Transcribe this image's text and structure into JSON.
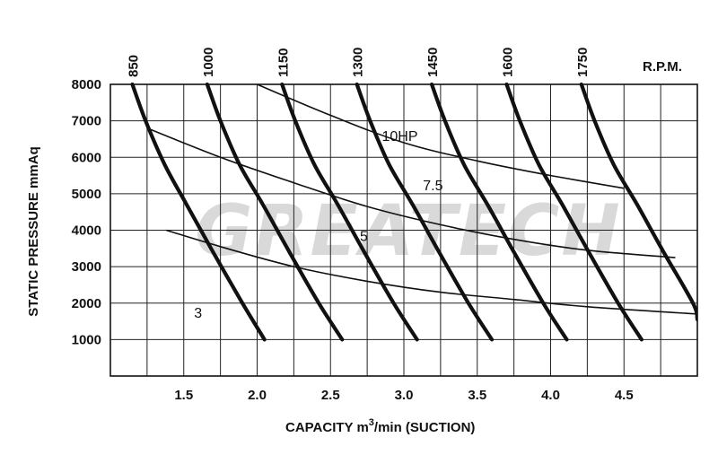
{
  "watermark": "GREATECH",
  "chart_data": {
    "type": "line",
    "title": "",
    "xlabel": "CAPACITY m3/min (SUCTION)",
    "xlabel_parts": {
      "prefix": "CAPACITY m",
      "superscript": "3",
      "suffix": "/min (SUCTION)"
    },
    "ylabel": "STATIC PRESSURE mmAq",
    "rpm_label": "R.P.M.",
    "xlim": [
      1.0,
      5.0
    ],
    "ylim": [
      0,
      8000
    ],
    "grid": true,
    "x_ticks": [
      1.5,
      2.0,
      2.5,
      3.0,
      3.5,
      4.0,
      4.5
    ],
    "x_tick_labels": [
      "1.5",
      "2.0",
      "2.5",
      "3.0",
      "3.5",
      "4.0",
      "4.5"
    ],
    "y_ticks": [
      1000,
      2000,
      3000,
      4000,
      5000,
      6000,
      7000,
      8000
    ],
    "y_tick_labels": [
      "1000",
      "2000",
      "3000",
      "4000",
      "5000",
      "6000",
      "7000",
      "8000"
    ],
    "rpm_series": [
      {
        "name": "850",
        "label": "850",
        "x": [
          1.15,
          1.24,
          1.37,
          1.52,
          1.7,
          1.9,
          2.05
        ],
        "y": [
          8000,
          7000,
          5800,
          4700,
          3400,
          2000,
          1000
        ]
      },
      {
        "name": "1000",
        "label": "1000",
        "x": [
          1.66,
          1.75,
          1.88,
          2.04,
          2.22,
          2.42,
          2.58
        ],
        "y": [
          8000,
          7000,
          5800,
          4700,
          3400,
          2000,
          1000
        ]
      },
      {
        "name": "1150",
        "label": "1150",
        "x": [
          2.17,
          2.26,
          2.39,
          2.55,
          2.73,
          2.93,
          3.09
        ],
        "y": [
          8000,
          7000,
          5800,
          4700,
          3400,
          2000,
          1000
        ]
      },
      {
        "name": "1300",
        "label": "1300",
        "x": [
          2.68,
          2.77,
          2.9,
          3.06,
          3.24,
          3.44,
          3.6
        ],
        "y": [
          8000,
          7000,
          5800,
          4700,
          3400,
          2000,
          1000
        ]
      },
      {
        "name": "1450",
        "label": "1450",
        "x": [
          3.19,
          3.28,
          3.41,
          3.57,
          3.75,
          3.95,
          4.11
        ],
        "y": [
          8000,
          7000,
          5800,
          4700,
          3400,
          2000,
          1000
        ]
      },
      {
        "name": "1600",
        "label": "1600",
        "x": [
          3.7,
          3.79,
          3.92,
          4.08,
          4.26,
          4.46,
          4.62
        ],
        "y": [
          8000,
          7000,
          5800,
          4700,
          3400,
          2000,
          1000
        ]
      },
      {
        "name": "1750",
        "label": "1750",
        "x": [
          4.21,
          4.3,
          4.43,
          4.59,
          4.77,
          4.97,
          5.0
        ],
        "y": [
          8000,
          7000,
          5800,
          4700,
          3400,
          2000,
          1550
        ]
      }
    ],
    "power_series": [
      {
        "name": "10HP",
        "label": "10HP",
        "x": [
          2.0,
          2.5,
          3.0,
          3.5,
          4.0,
          4.5
        ],
        "y": [
          8000,
          7150,
          6400,
          5900,
          5500,
          5150
        ]
      },
      {
        "name": "7.5",
        "label": "7.5",
        "x": [
          1.25,
          1.75,
          2.25,
          2.75,
          3.25,
          3.75,
          4.25,
          4.85
        ],
        "y": [
          6800,
          6000,
          5300,
          4650,
          4150,
          3750,
          3450,
          3250
        ]
      },
      {
        "name": "5",
        "label": "5",
        "x": [
          1.38,
          1.75,
          2.25,
          2.75,
          3.25,
          3.75,
          4.25,
          5.0
        ],
        "y": [
          4000,
          3550,
          3000,
          2600,
          2300,
          2100,
          1900,
          1700
        ]
      },
      {
        "name": "3",
        "label": "3",
        "x": [],
        "y": []
      }
    ]
  }
}
